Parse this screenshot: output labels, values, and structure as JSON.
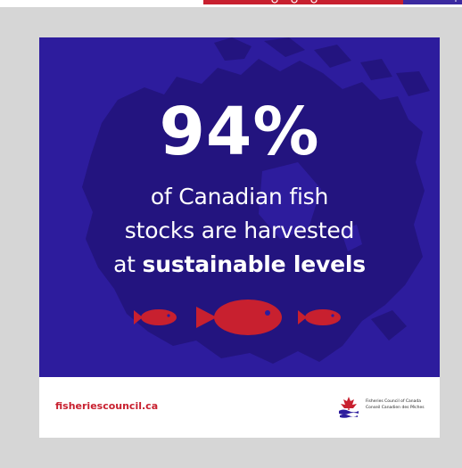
{
  "top_banner": {
    "text": "imp",
    "red": "#c8202f",
    "blue": "#3b2aa0"
  },
  "card": {
    "background": "#2d1c9d",
    "statistic": "94%",
    "line_1": "of Canadian fish",
    "line_2": "stocks are harvested",
    "line_3_prefix": "at ",
    "line_3_emphasis": "sustainable levels",
    "map_icon": "canada-map-silhouette",
    "fish_icons": [
      "small-fish-icon",
      "large-fish-icon",
      "small-fish-icon"
    ],
    "fish_color": "#c8202f"
  },
  "footer": {
    "website": "fisheriescouncil.ca",
    "logo_icon": "maple-leaf-waves-logo",
    "org_name_en": "Fisheries Council of Canada",
    "org_name_fr": "Conseil Canadien des Pêches"
  }
}
